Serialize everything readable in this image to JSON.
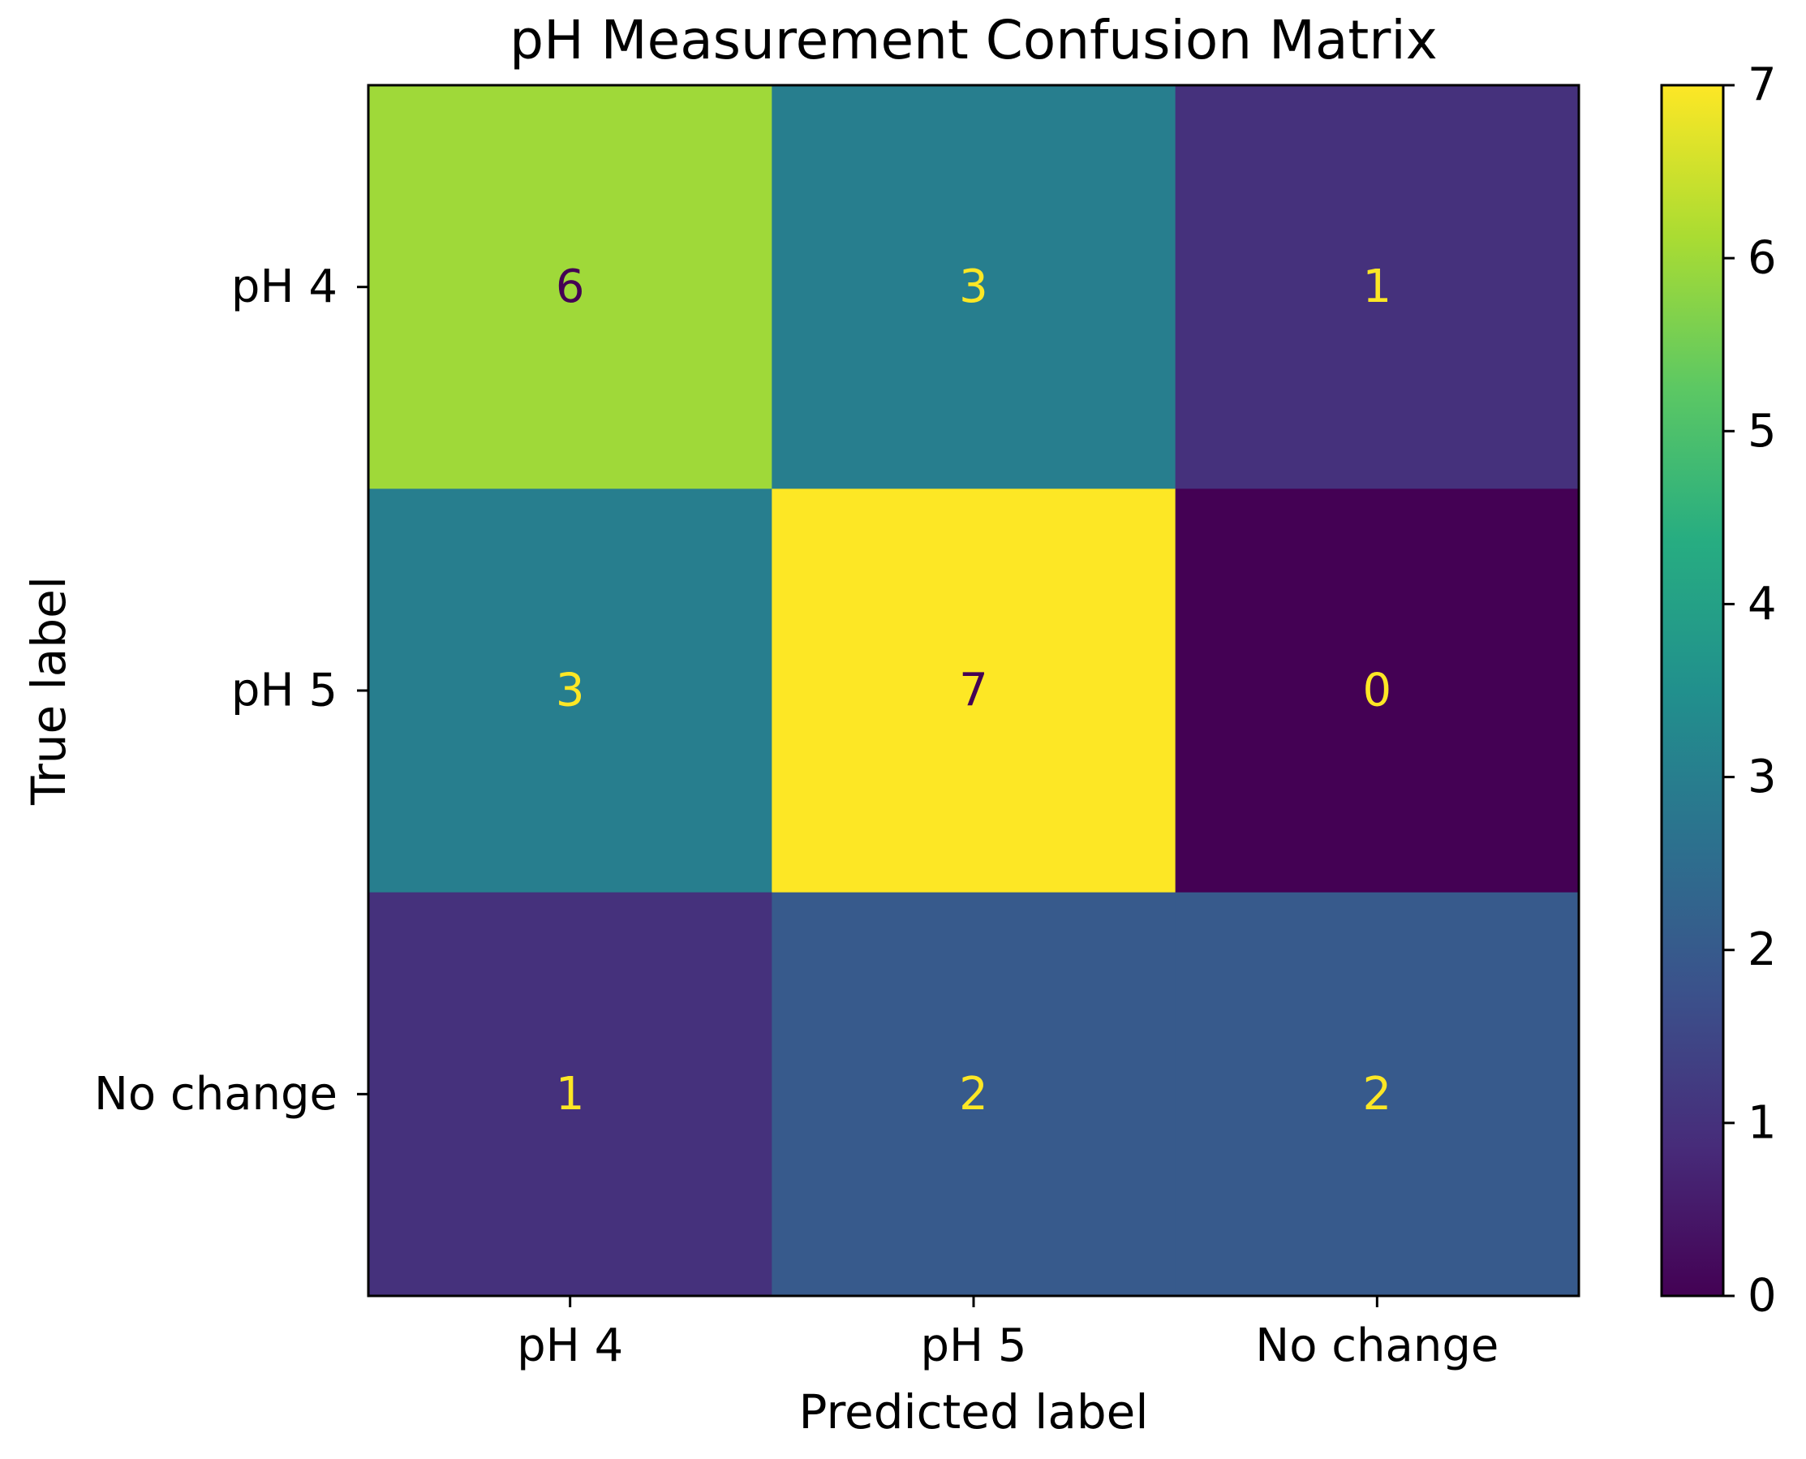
{
  "chart_data": {
    "type": "heatmap",
    "title": "pH Measurement Confusion Matrix",
    "xlabel": "Predicted label",
    "ylabel": "True label",
    "x_categories": [
      "pH 4",
      "pH 5",
      "No change"
    ],
    "y_categories": [
      "pH 4",
      "pH 5",
      "No change"
    ],
    "values": [
      [
        6,
        3,
        1
      ],
      [
        3,
        7,
        0
      ],
      [
        1,
        2,
        2
      ]
    ],
    "colormap": "viridis",
    "colorbar": {
      "range": [
        0,
        7
      ],
      "ticks": [
        "0",
        "1",
        "2",
        "3",
        "4",
        "5",
        "6",
        "7"
      ]
    },
    "text_colors": {
      "light": "#fde725",
      "dark": "#440154"
    },
    "grid": false
  }
}
